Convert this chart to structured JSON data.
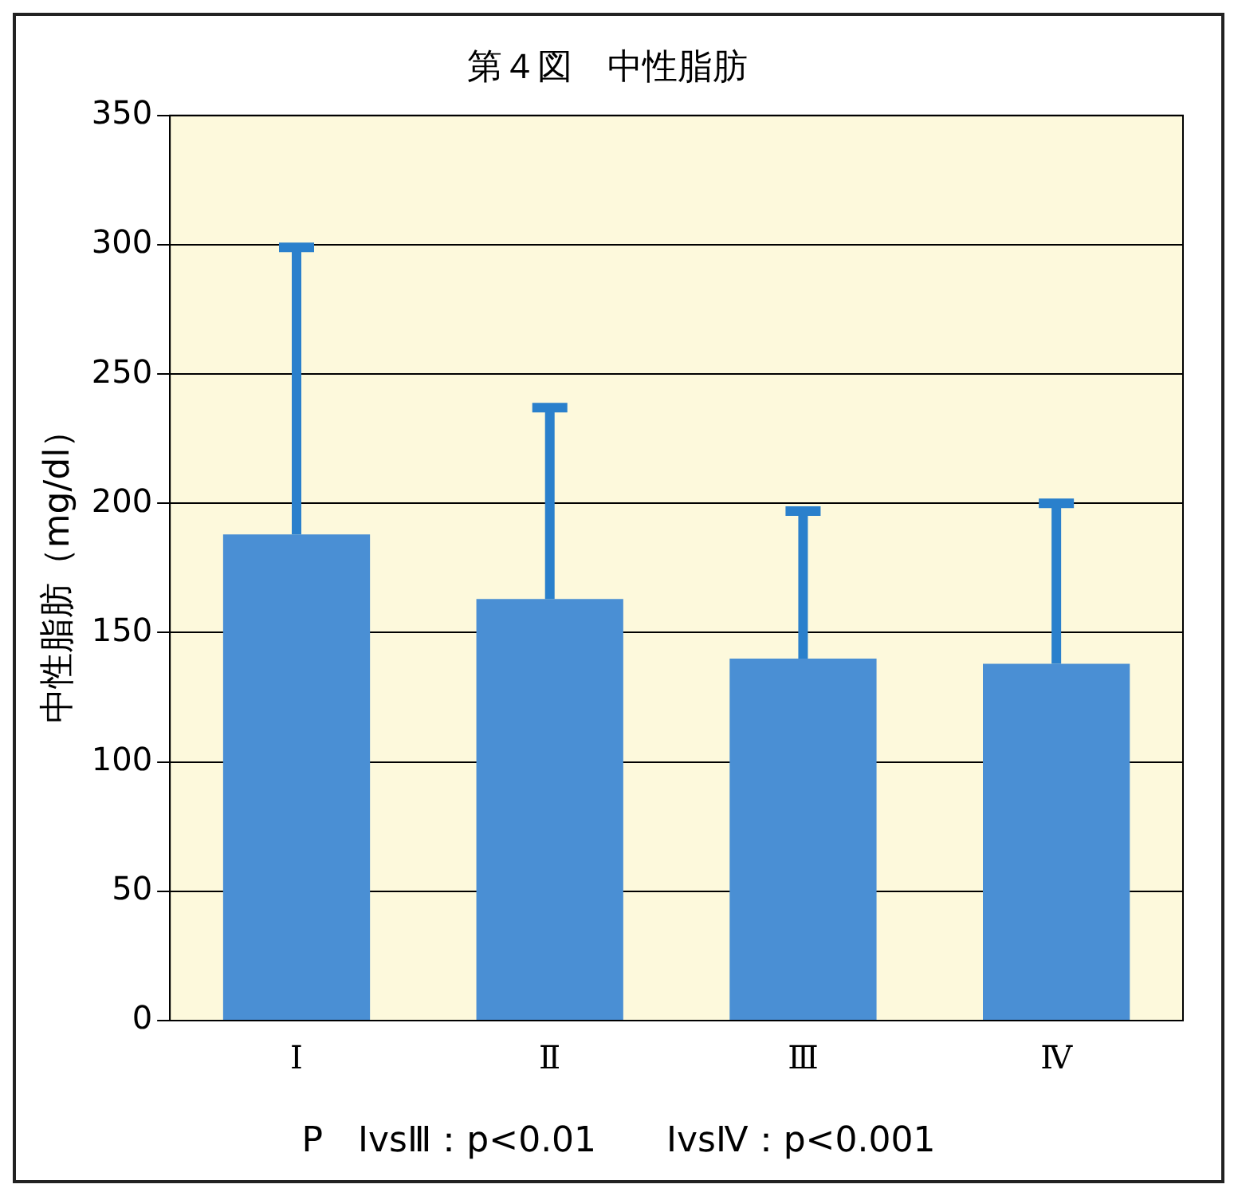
{
  "chart_data": {
    "type": "bar",
    "title": "第４図　中性脂肪",
    "ylabel": "中性脂肪（mg/dl）",
    "categories": [
      "Ⅰ",
      "Ⅱ",
      "Ⅲ",
      "Ⅳ"
    ],
    "series": [
      {
        "color": "#4a8fd4",
        "values": [
          188,
          163,
          140,
          138
        ],
        "errors": [
          [
            188,
            299
          ],
          [
            163,
            237
          ],
          [
            140,
            197
          ],
          [
            138,
            200
          ]
        ]
      }
    ],
    "ylim": [
      0,
      350
    ],
    "yticks": [
      0,
      50,
      100,
      150,
      200,
      250,
      300,
      350
    ],
    "grid": "y",
    "legend": false,
    "annotations": [
      "P　ⅠvsⅢ：p<0.01　　ⅠvsⅣ：p<0.001"
    ]
  }
}
